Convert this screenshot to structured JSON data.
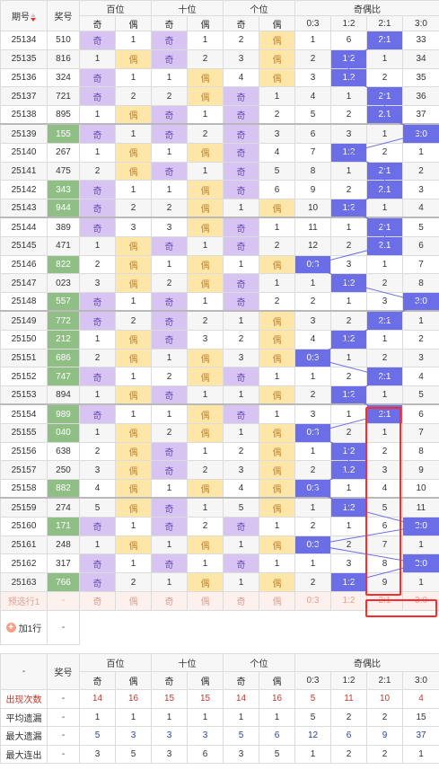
{
  "header": {
    "qihao": "期号",
    "jianghao": "奖号",
    "bai": "百位",
    "shi": "十位",
    "ge": "个位",
    "ratio": "奇偶比",
    "ji": "奇",
    "ou": "偶",
    "ratios": [
      "0:3",
      "1:2",
      "2:1",
      "3:0"
    ]
  },
  "rows": [
    {
      "qh": "25134",
      "num": "510",
      "c": [
        "奇",
        "1",
        "奇",
        "1",
        "2",
        "偶",
        "1",
        "6",
        "2:1",
        "33"
      ]
    },
    {
      "qh": "25135",
      "num": "816",
      "c": [
        "1",
        "偶",
        "奇",
        "2",
        "3",
        "偶",
        "2",
        "1:2",
        "1",
        "34"
      ]
    },
    {
      "qh": "25136",
      "num": "324",
      "c": [
        "奇",
        "1",
        "1",
        "偶",
        "4",
        "偶",
        "3",
        "1:2",
        "2",
        "35"
      ]
    },
    {
      "qh": "25137",
      "num": "721",
      "c": [
        "奇",
        "2",
        "2",
        "偶",
        "奇",
        "1",
        "4",
        "1",
        "2:1",
        "36"
      ]
    },
    {
      "qh": "25138",
      "num": "895",
      "c": [
        "1",
        "偶",
        "奇",
        "1",
        "奇",
        "2",
        "5",
        "2",
        "2:1",
        "37"
      ]
    },
    {
      "qh": "25139",
      "num": "155",
      "c": [
        "奇",
        "1",
        "奇",
        "2",
        "奇",
        "3",
        "6",
        "3",
        "1",
        "3:0"
      ]
    },
    {
      "qh": "25140",
      "num": "267",
      "c": [
        "1",
        "偶",
        "1",
        "偶",
        "奇",
        "4",
        "7",
        "1:2",
        "2",
        "1"
      ]
    },
    {
      "qh": "25141",
      "num": "475",
      "c": [
        "2",
        "偶",
        "奇",
        "1",
        "奇",
        "5",
        "8",
        "1",
        "2:1",
        "2"
      ]
    },
    {
      "qh": "25142",
      "num": "343",
      "c": [
        "奇",
        "1",
        "1",
        "偶",
        "奇",
        "6",
        "9",
        "2",
        "2:1",
        "3"
      ]
    },
    {
      "qh": "25143",
      "num": "944",
      "c": [
        "奇",
        "2",
        "2",
        "偶",
        "1",
        "偶",
        "10",
        "1:2",
        "1",
        "4"
      ]
    },
    {
      "qh": "25144",
      "num": "389",
      "c": [
        "奇",
        "3",
        "3",
        "偶",
        "奇",
        "1",
        "11",
        "1",
        "2:1",
        "5"
      ]
    },
    {
      "qh": "25145",
      "num": "471",
      "c": [
        "1",
        "偶",
        "奇",
        "1",
        "奇",
        "2",
        "12",
        "2",
        "2:1",
        "6"
      ]
    },
    {
      "qh": "25146",
      "num": "822",
      "c": [
        "2",
        "偶",
        "1",
        "偶",
        "1",
        "偶",
        "0:3",
        "3",
        "1",
        "7"
      ]
    },
    {
      "qh": "25147",
      "num": "023",
      "c": [
        "3",
        "偶",
        "2",
        "偶",
        "奇",
        "1",
        "1",
        "1:2",
        "2",
        "8"
      ]
    },
    {
      "qh": "25148",
      "num": "557",
      "c": [
        "奇",
        "1",
        "奇",
        "1",
        "奇",
        "2",
        "2",
        "1",
        "3",
        "3:0"
      ]
    },
    {
      "qh": "25149",
      "num": "772",
      "c": [
        "奇",
        "2",
        "奇",
        "2",
        "1",
        "偶",
        "3",
        "2",
        "2:1",
        "1"
      ]
    },
    {
      "qh": "25150",
      "num": "212",
      "c": [
        "1",
        "偶",
        "奇",
        "3",
        "2",
        "偶",
        "4",
        "1:2",
        "1",
        "2"
      ]
    },
    {
      "qh": "25151",
      "num": "686",
      "c": [
        "2",
        "偶",
        "1",
        "偶",
        "3",
        "偶",
        "0:3",
        "1",
        "2",
        "3"
      ]
    },
    {
      "qh": "25152",
      "num": "747",
      "c": [
        "奇",
        "1",
        "2",
        "偶",
        "奇",
        "1",
        "1",
        "2",
        "2:1",
        "4"
      ]
    },
    {
      "qh": "25153",
      "num": "894",
      "c": [
        "1",
        "偶",
        "奇",
        "1",
        "1",
        "偶",
        "2",
        "1:2",
        "1",
        "5"
      ]
    },
    {
      "qh": "25154",
      "num": "989",
      "c": [
        "奇",
        "1",
        "1",
        "偶",
        "奇",
        "1",
        "3",
        "1",
        "2:1",
        "6"
      ]
    },
    {
      "qh": "25155",
      "num": "040",
      "c": [
        "1",
        "偶",
        "2",
        "偶",
        "1",
        "偶",
        "0:3",
        "2",
        "1",
        "7"
      ]
    },
    {
      "qh": "25156",
      "num": "638",
      "c": [
        "2",
        "偶",
        "奇",
        "1",
        "2",
        "偶",
        "1",
        "1:2",
        "2",
        "8"
      ]
    },
    {
      "qh": "25157",
      "num": "250",
      "c": [
        "3",
        "偶",
        "奇",
        "2",
        "3",
        "偶",
        "2",
        "1:2",
        "3",
        "9"
      ]
    },
    {
      "qh": "25158",
      "num": "882",
      "c": [
        "4",
        "偶",
        "1",
        "偶",
        "4",
        "偶",
        "0:3",
        "1",
        "4",
        "10"
      ]
    },
    {
      "qh": "25159",
      "num": "274",
      "c": [
        "5",
        "偶",
        "奇",
        "1",
        "5",
        "偶",
        "1",
        "1:2",
        "5",
        "11"
      ]
    },
    {
      "qh": "25160",
      "num": "171",
      "c": [
        "奇",
        "1",
        "奇",
        "2",
        "奇",
        "1",
        "2",
        "1",
        "6",
        "3:0"
      ]
    },
    {
      "qh": "25161",
      "num": "248",
      "c": [
        "1",
        "偶",
        "1",
        "偶",
        "1",
        "偶",
        "0:3",
        "2",
        "7",
        "1"
      ]
    },
    {
      "qh": "25162",
      "num": "317",
      "c": [
        "奇",
        "1",
        "奇",
        "1",
        "奇",
        "1",
        "1",
        "3",
        "8",
        "3:0"
      ]
    },
    {
      "qh": "25163",
      "num": "766",
      "c": [
        "奇",
        "2",
        "1",
        "偶",
        "1",
        "偶",
        "2",
        "1:2",
        "9",
        "1"
      ]
    }
  ],
  "pred": {
    "label": "预选行1",
    "dash": "-",
    "cells": [
      "奇",
      "偶",
      "奇",
      "偶",
      "奇",
      "偶",
      "0:3",
      "1:2",
      "2:1",
      "3:0"
    ]
  },
  "add": {
    "label": "加1行",
    "dash": "-"
  },
  "stats_header": {
    "dash": "-",
    "jianghao": "奖号"
  },
  "stats": [
    {
      "label": "出现次数",
      "dash": "-",
      "vals": [
        "14",
        "16",
        "15",
        "15",
        "14",
        "16",
        "5",
        "11",
        "10",
        "4"
      ]
    },
    {
      "label": "平均遗漏",
      "dash": "-",
      "vals": [
        "1",
        "1",
        "1",
        "1",
        "1",
        "1",
        "5",
        "2",
        "2",
        "15"
      ]
    },
    {
      "label": "最大遗漏",
      "dash": "-",
      "vals": [
        "5",
        "3",
        "3",
        "3",
        "5",
        "6",
        "12",
        "6",
        "9",
        "37"
      ]
    },
    {
      "label": "最大连出",
      "dash": "-",
      "vals": [
        "3",
        "5",
        "3",
        "6",
        "3",
        "5",
        "1",
        "2",
        "2",
        "1"
      ]
    }
  ],
  "colors": {
    "ji": "#d8c4f3",
    "ou": "#fde6a8",
    "green": "#8fbf85",
    "blue": "#6b6ee6",
    "red": "#ff2a2a"
  }
}
